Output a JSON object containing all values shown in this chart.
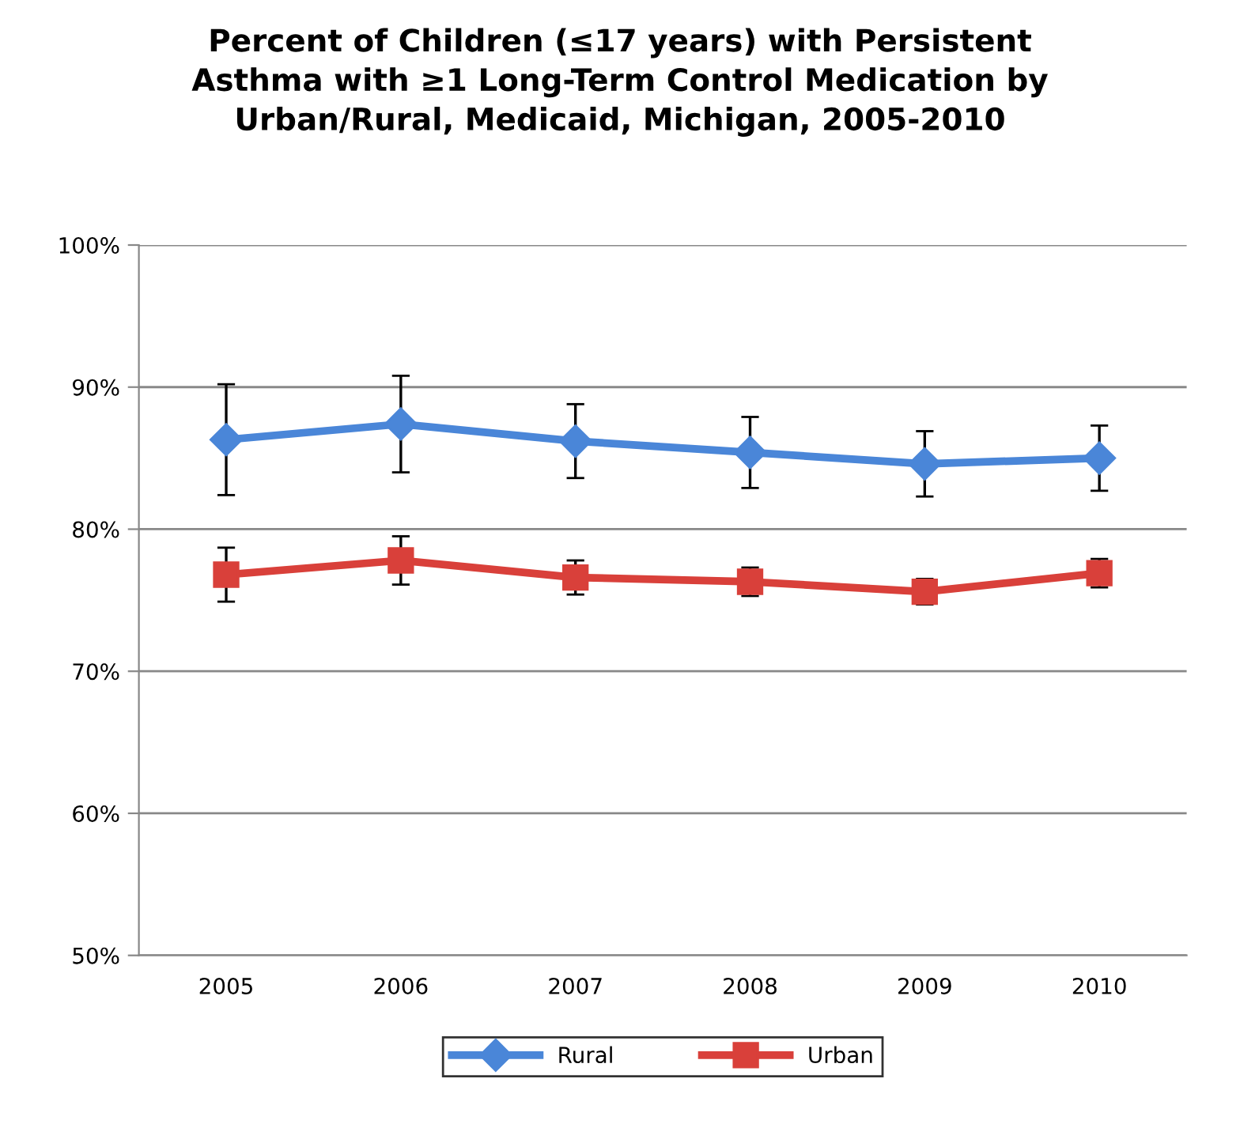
{
  "chart_data": {
    "type": "line",
    "title": "Percent of Children (≤17 years) with Persistent\nAsthma with ≥1 Long-Term Control Medication by\nUrban/Rural, Medicaid, Michigan, 2005-2010",
    "categories": [
      "2005",
      "2006",
      "2007",
      "2008",
      "2009",
      "2010"
    ],
    "series": [
      {
        "name": "Rural",
        "color": "#4a86d8",
        "marker": "diamond",
        "values": [
          86.3,
          87.4,
          86.2,
          85.4,
          84.6,
          85.0
        ],
        "errors": [
          3.9,
          3.4,
          2.6,
          2.5,
          2.3,
          2.3
        ]
      },
      {
        "name": "Urban",
        "color": "#d9403a",
        "marker": "square",
        "values": [
          76.8,
          77.8,
          76.6,
          76.3,
          75.6,
          76.9
        ],
        "errors": [
          1.9,
          1.7,
          1.2,
          1.0,
          0.9,
          1.0
        ]
      }
    ],
    "ylim": [
      50,
      100
    ],
    "yticks": [
      {
        "value": 50,
        "label": "50%"
      },
      {
        "value": 60,
        "label": "60%"
      },
      {
        "value": 70,
        "label": "70%"
      },
      {
        "value": 80,
        "label": "80%"
      },
      {
        "value": 90,
        "label": "90%"
      },
      {
        "value": 100,
        "label": "100%"
      }
    ],
    "grid": "y",
    "legend": "bottom",
    "line_style": "solid"
  }
}
